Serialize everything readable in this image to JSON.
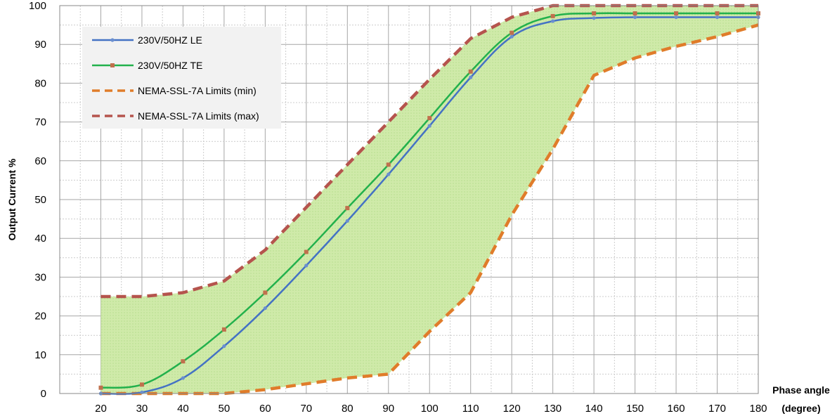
{
  "chart_data": {
    "type": "line",
    "title": "",
    "xlabel": "Phase angle",
    "xlabel_unit": "(degree)",
    "ylabel": "Output Current %",
    "xlim": [
      10,
      180
    ],
    "ylim": [
      0,
      100
    ],
    "x_ticks": [
      20,
      30,
      40,
      50,
      60,
      70,
      80,
      90,
      100,
      110,
      120,
      130,
      140,
      150,
      160,
      170,
      180
    ],
    "y_ticks": [
      0,
      10,
      20,
      30,
      40,
      50,
      60,
      70,
      80,
      90,
      100
    ],
    "grid": true,
    "legend_position": "top-left",
    "series": [
      {
        "name": "230V/50HZ LE",
        "color": "#4472c4",
        "style": "solid",
        "x": [
          20,
          30,
          40,
          50,
          60,
          70,
          80,
          90,
          100,
          110,
          120,
          130,
          140,
          150,
          160,
          170,
          180
        ],
        "y": [
          0,
          0.3,
          4,
          12.2,
          22,
          33,
          44.5,
          56.5,
          69,
          81.5,
          92,
          96,
          96.8,
          97,
          97,
          97,
          97
        ]
      },
      {
        "name": "230V/50HZ TE",
        "color": "#22b14c",
        "style": "solid",
        "x": [
          20,
          30,
          40,
          50,
          60,
          70,
          80,
          90,
          100,
          110,
          120,
          130,
          140,
          150,
          160,
          170,
          180
        ],
        "y": [
          1.5,
          2.3,
          8.3,
          16.5,
          26,
          36.5,
          47.8,
          59,
          71,
          83,
          93,
          97.3,
          98,
          98,
          98,
          98,
          98
        ]
      },
      {
        "name": "NEMA-SSL-7A Limits (min)",
        "color": "#e07c2a",
        "style": "dashed",
        "x": [
          20,
          30,
          40,
          50,
          60,
          70,
          80,
          90,
          100,
          110,
          120,
          130,
          140,
          150,
          160,
          170,
          180
        ],
        "y": [
          0,
          0,
          0,
          0,
          1,
          2.5,
          4,
          5,
          16,
          26,
          46,
          63,
          82,
          86.5,
          89.5,
          92,
          95
        ]
      },
      {
        "name": "NEMA-SSL-7A Limits (max)",
        "color": "#b5544d",
        "style": "dashed",
        "x": [
          20,
          30,
          40,
          50,
          60,
          70,
          80,
          90,
          100,
          110,
          120,
          130,
          140,
          150,
          160,
          170,
          180
        ],
        "y": [
          25,
          25,
          26,
          29,
          37,
          48,
          59,
          70,
          81,
          91.5,
          97,
          100,
          100,
          100,
          100,
          100,
          100
        ]
      }
    ],
    "shaded_region": {
      "between": [
        "NEMA-SSL-7A Limits (min)",
        "NEMA-SSL-7A Limits (max)"
      ],
      "color": "#c6e5a0"
    }
  }
}
